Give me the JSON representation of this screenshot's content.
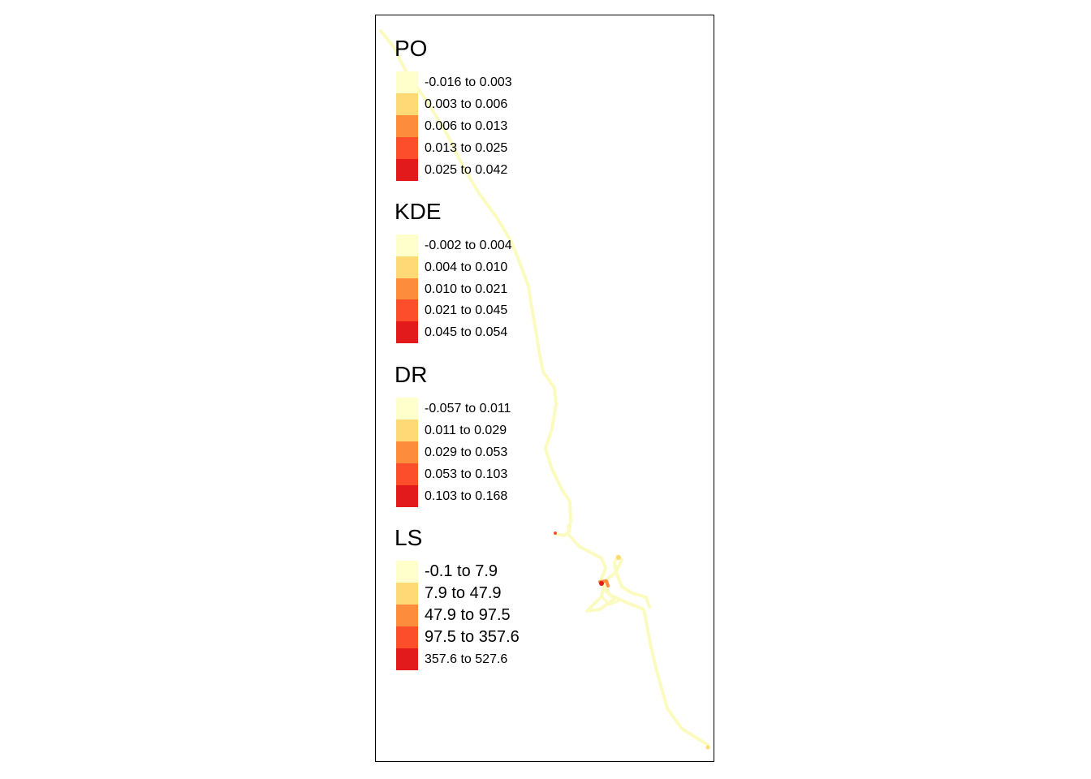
{
  "palette": [
    "#ffffcc",
    "#fed976",
    "#fd8d3c",
    "#fc4e2a",
    "#e31a1c"
  ],
  "legends": [
    {
      "title": "PO",
      "items": [
        "-0.016 to 0.003",
        "0.003 to 0.006",
        "0.006 to 0.013",
        "0.013 to 0.025",
        "0.025 to 0.042"
      ]
    },
    {
      "title": "KDE",
      "items": [
        "-0.002 to 0.004",
        "0.004 to 0.010",
        "0.010 to 0.021",
        "0.021 to 0.045",
        "0.045 to 0.054"
      ]
    },
    {
      "title": "DR",
      "items": [
        "-0.057 to 0.011",
        "0.011 to 0.029",
        "0.029 to 0.053",
        "0.053 to 0.103",
        "0.103 to 0.168"
      ]
    },
    {
      "title": "LS",
      "items": [
        "-0.1 to 7.9",
        "7.9 to 47.9",
        "47.9 to 97.5",
        "97.5 to 357.6",
        "357.6 to 527.6"
      ]
    }
  ],
  "route_color": "#ffffcc"
}
